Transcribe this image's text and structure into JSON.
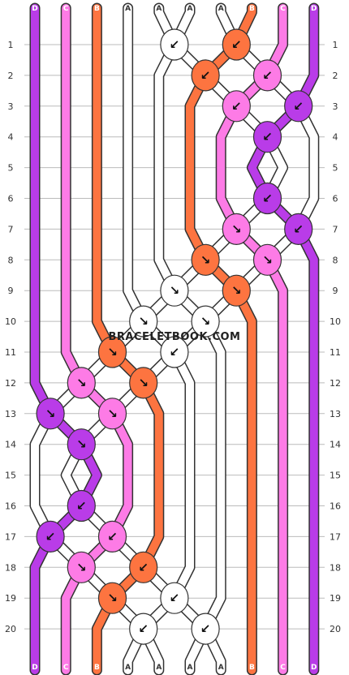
{
  "watermark": "BRACELETBOOK.COM",
  "colors": {
    "A": "#ffffff",
    "B": "#fd7440",
    "C": "#fd7be6",
    "D": "#b93ce8",
    "outline": "#333333",
    "gridline": "#bbbbbb"
  },
  "strands": [
    "D",
    "C",
    "B",
    "A",
    "A",
    "A",
    "A",
    "B",
    "C",
    "D"
  ],
  "rows": [
    "1",
    "2",
    "3",
    "4",
    "5",
    "6",
    "7",
    "8",
    "9",
    "10",
    "11",
    "12",
    "13",
    "14",
    "15",
    "16",
    "17",
    "18",
    "19",
    "20"
  ],
  "knots": [
    {
      "row": 1,
      "pos": 4,
      "color": "A",
      "arrow": "↙"
    },
    {
      "row": 1,
      "pos": 6,
      "color": "B",
      "arrow": "↙"
    },
    {
      "row": 2,
      "pos": 5,
      "color": "B",
      "arrow": "↙"
    },
    {
      "row": 2,
      "pos": 7,
      "color": "C",
      "arrow": "↙"
    },
    {
      "row": 3,
      "pos": 6,
      "color": "C",
      "arrow": "↙"
    },
    {
      "row": 3,
      "pos": 8,
      "color": "D",
      "arrow": "↙"
    },
    {
      "row": 4,
      "pos": 7,
      "color": "D",
      "arrow": "↙"
    },
    {
      "row": 6,
      "pos": 7,
      "color": "D",
      "arrow": "↙"
    },
    {
      "row": 7,
      "pos": 6,
      "color": "C",
      "arrow": "↘"
    },
    {
      "row": 7,
      "pos": 8,
      "color": "D",
      "arrow": "↙"
    },
    {
      "row": 8,
      "pos": 5,
      "color": "B",
      "arrow": "↘"
    },
    {
      "row": 8,
      "pos": 7,
      "color": "C",
      "arrow": "↘"
    },
    {
      "row": 9,
      "pos": 4,
      "color": "A",
      "arrow": "↘"
    },
    {
      "row": 9,
      "pos": 6,
      "color": "B",
      "arrow": "↘"
    },
    {
      "row": 10,
      "pos": 3,
      "color": "A",
      "arrow": "↘"
    },
    {
      "row": 10,
      "pos": 5,
      "color": "A",
      "arrow": "↘"
    },
    {
      "row": 11,
      "pos": 2,
      "color": "B",
      "arrow": "↘"
    },
    {
      "row": 11,
      "pos": 4,
      "color": "A",
      "arrow": "↙"
    },
    {
      "row": 12,
      "pos": 1,
      "color": "C",
      "arrow": "↘"
    },
    {
      "row": 12,
      "pos": 3,
      "color": "B",
      "arrow": "↘"
    },
    {
      "row": 13,
      "pos": 0,
      "color": "D",
      "arrow": "↘"
    },
    {
      "row": 13,
      "pos": 2,
      "color": "C",
      "arrow": "↘"
    },
    {
      "row": 14,
      "pos": 1,
      "color": "D",
      "arrow": "↘"
    },
    {
      "row": 16,
      "pos": 1,
      "color": "D",
      "arrow": "↙"
    },
    {
      "row": 17,
      "pos": 0,
      "color": "D",
      "arrow": "↙"
    },
    {
      "row": 17,
      "pos": 2,
      "color": "C",
      "arrow": "↙"
    },
    {
      "row": 18,
      "pos": 1,
      "color": "C",
      "arrow": "↘"
    },
    {
      "row": 18,
      "pos": 3,
      "color": "B",
      "arrow": "↙"
    },
    {
      "row": 19,
      "pos": 2,
      "color": "B",
      "arrow": "↘"
    },
    {
      "row": 19,
      "pos": 4,
      "color": "A",
      "arrow": "↙"
    },
    {
      "row": 20,
      "pos": 3,
      "color": "A",
      "arrow": "↙"
    },
    {
      "row": 20,
      "pos": 5,
      "color": "A",
      "arrow": "↙"
    }
  ]
}
